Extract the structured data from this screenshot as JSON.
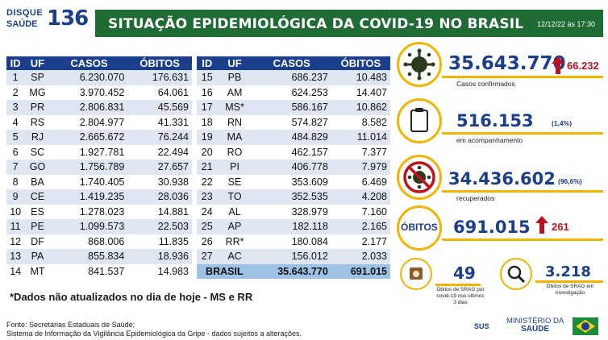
{
  "logo": {
    "line1": "DISQUE",
    "line2": "SAÚDE",
    "number": "136"
  },
  "header": {
    "title": "SITUAÇÃO EPIDEMIOLÓGICA DA COVID-19 NO BRASIL",
    "date": "12/12/22 às 17:30"
  },
  "table": {
    "columns": [
      "ID",
      "UF",
      "CASOS",
      "ÓBITOS"
    ],
    "left": [
      [
        "1",
        "SP",
        "6.230.070",
        "176.631"
      ],
      [
        "2",
        "MG",
        "3.970.452",
        "64.061"
      ],
      [
        "3",
        "PR",
        "2.806.831",
        "45.569"
      ],
      [
        "4",
        "RS",
        "2.804.977",
        "41.331"
      ],
      [
        "5",
        "RJ",
        "2.665.672",
        "76.244"
      ],
      [
        "6",
        "SC",
        "1.927.781",
        "22.494"
      ],
      [
        "7",
        "GO",
        "1.756.789",
        "27.657"
      ],
      [
        "8",
        "BA",
        "1.740.405",
        "30.938"
      ],
      [
        "9",
        "CE",
        "1.419.235",
        "28.036"
      ],
      [
        "10",
        "ES",
        "1.278.023",
        "14.881"
      ],
      [
        "11",
        "PE",
        "1.099.573",
        "22.503"
      ],
      [
        "12",
        "DF",
        "868.006",
        "11.835"
      ],
      [
        "13",
        "PA",
        "855.834",
        "18.936"
      ],
      [
        "14",
        "MT",
        "841.537",
        "14.983"
      ]
    ],
    "right": [
      [
        "15",
        "PB",
        "686.237",
        "10.483"
      ],
      [
        "16",
        "AM",
        "624.253",
        "14.407"
      ],
      [
        "17",
        "MS*",
        "586.167",
        "10.862"
      ],
      [
        "18",
        "RN",
        "574.827",
        "8.582"
      ],
      [
        "19",
        "MA",
        "484.829",
        "11.014"
      ],
      [
        "20",
        "RO",
        "462.157",
        "7.377"
      ],
      [
        "21",
        "PI",
        "406.778",
        "7.979"
      ],
      [
        "22",
        "SE",
        "353.609",
        "6.469"
      ],
      [
        "23",
        "TO",
        "352.535",
        "4.208"
      ],
      [
        "24",
        "AL",
        "328.979",
        "7.160"
      ],
      [
        "25",
        "AP",
        "182.118",
        "2.165"
      ],
      [
        "26",
        "RR*",
        "180.084",
        "2.177"
      ],
      [
        "27",
        "AC",
        "156.012",
        "2.033"
      ]
    ],
    "total": {
      "label": "BRASIL",
      "casos": "35.643.770",
      "obitos": "691.015"
    }
  },
  "note": "*Dados não atualizados no dia de hoje - MS e RR",
  "source": {
    "line1": "Fonte: Secretarias Estaduais de Saúde;",
    "line2": "Sistema de Informação da Vigilância Epidemiológica da Gripe - dados sujeitos a alterações."
  },
  "panels": {
    "confirmados": {
      "value": "35.643.770",
      "delta": "66.232",
      "caption": "Casos confirmados",
      "icon": "virus-icon"
    },
    "acompanhamento": {
      "value": "516.153",
      "pct": "(1,4%)",
      "caption": "em acompanhamento",
      "icon": "clipboard-icon"
    },
    "recuperados": {
      "value": "34.436.602",
      "pct": "(96,6%)",
      "caption": "recuperados",
      "icon": "no-virus-icon"
    },
    "obitos": {
      "label": "ÓBITOS",
      "value": "691.015",
      "delta": "261"
    },
    "srag": {
      "value": "49",
      "caption": "Óbitos de SRAG por covid-19 nos últimos 3 dias",
      "icon": "calendar-icon"
    },
    "investigacao": {
      "value": "3.218",
      "caption": "Óbitos de SRAG em investigação",
      "icon": "magnifier-icon"
    }
  },
  "footer": {
    "sus": "SUS",
    "ministry_line1": "MINISTÉRIO DA",
    "ministry_line2": "SAÚDE"
  },
  "colors": {
    "green": "#1e6b33",
    "blue": "#1b3f8c",
    "yellow": "#f1b400",
    "red": "#c0111f"
  }
}
